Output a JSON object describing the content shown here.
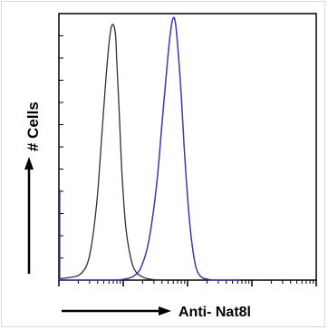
{
  "chart_data": {
    "type": "line",
    "title": "",
    "xlabel": "Anti- Nat8l",
    "ylabel": "# Cells",
    "x_scale": "log",
    "xlim": [
      0,
      1
    ],
    "ylim": [
      0,
      1
    ],
    "grid": false,
    "legend": "none",
    "series": [
      {
        "color": "#303030",
        "x": [
          0.0,
          0.04,
          0.08,
          0.11,
          0.13,
          0.15,
          0.165,
          0.18,
          0.19,
          0.2,
          0.21,
          0.22,
          0.225,
          0.235,
          0.245,
          0.26,
          0.28,
          0.3,
          0.33,
          0.36,
          0.4
        ],
        "y": [
          0.005,
          0.01,
          0.02,
          0.06,
          0.15,
          0.32,
          0.52,
          0.72,
          0.84,
          0.93,
          0.96,
          0.92,
          0.82,
          0.62,
          0.4,
          0.2,
          0.08,
          0.03,
          0.01,
          0.003,
          0.0
        ]
      },
      {
        "color": "#3a3aa8",
        "x": [
          0.0,
          0.1,
          0.2,
          0.25,
          0.29,
          0.32,
          0.35,
          0.38,
          0.4,
          0.42,
          0.43,
          0.44,
          0.45,
          0.46,
          0.475,
          0.49,
          0.51,
          0.53,
          0.55,
          0.58,
          0.62,
          0.7
        ],
        "y": [
          0.0,
          0.0,
          0.0,
          0.003,
          0.015,
          0.05,
          0.15,
          0.36,
          0.58,
          0.8,
          0.9,
          0.97,
          0.98,
          0.9,
          0.7,
          0.45,
          0.2,
          0.06,
          0.015,
          0.003,
          0.0,
          0.0
        ]
      }
    ]
  }
}
